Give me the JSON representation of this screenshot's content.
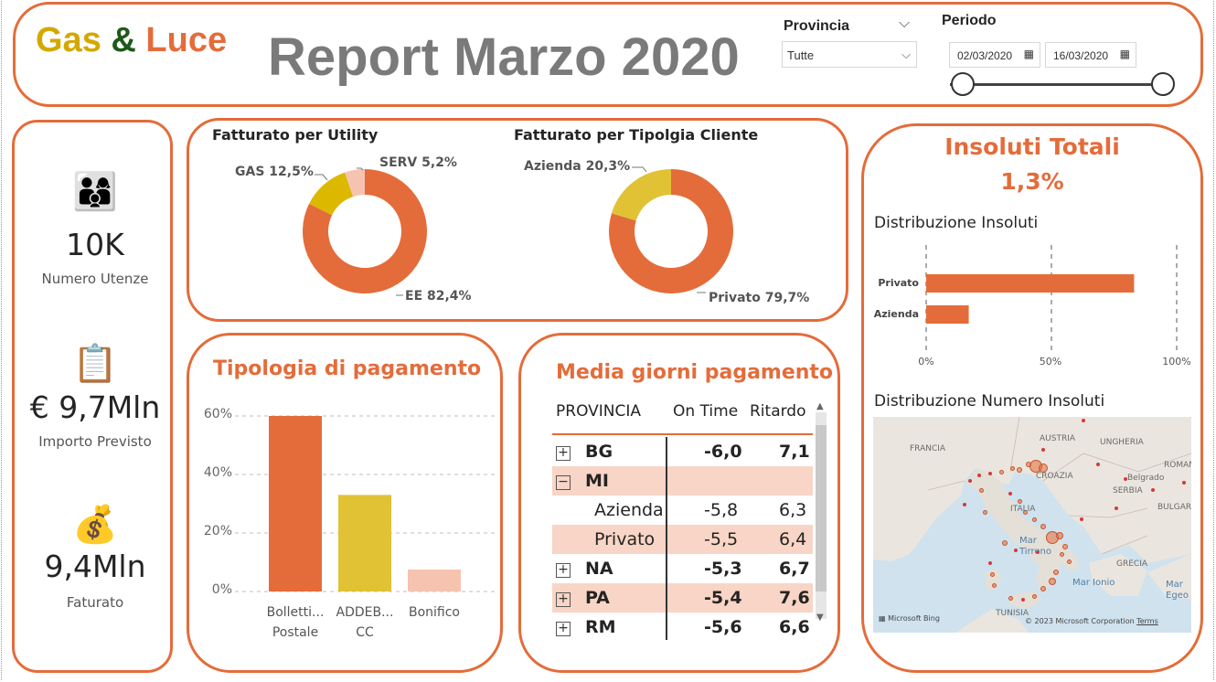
{
  "header": {
    "logo": {
      "gas": "Gas",
      "amp": "&",
      "luce": "Luce"
    },
    "title": "Report Marzo 2020",
    "provincia": {
      "label": "Provincia",
      "value": "Tutte"
    },
    "periodo": {
      "label": "Periodo",
      "start": "02/03/2020",
      "end": "16/03/2020"
    }
  },
  "kpis": [
    {
      "icon": "family-icon",
      "value": "10K",
      "label": "Numero Utenze"
    },
    {
      "icon": "calculator-report-icon",
      "value": "€ 9,7Mln",
      "label": "Importo Previsto"
    },
    {
      "icon": "money-bag-icon",
      "value": "9,4Mln",
      "label": "Faturato"
    }
  ],
  "colors": {
    "accent": "#E46C3A",
    "yellow": "#E0C234",
    "gold": "#D3A800",
    "peach": "#F5C3B0",
    "green": "#1E5A18"
  },
  "donut_utility": {
    "title": "Fatturato per Utility",
    "chart_data": {
      "type": "pie",
      "title": "Fatturato per Utility",
      "slices": [
        {
          "label": "EE",
          "value": 82.4,
          "text": "EE 82,4%",
          "color": "#E46C3A"
        },
        {
          "label": "GAS",
          "value": 12.5,
          "text": "GAS 12,5%",
          "color": "#DDB800"
        },
        {
          "label": "SERV",
          "value": 5.2,
          "text": "SERV 5,2%",
          "color": "#F5C3B0"
        }
      ]
    }
  },
  "donut_cliente": {
    "title": "Fatturato per Tipolgia Cliente",
    "chart_data": {
      "type": "pie",
      "title": "Fatturato per Tipolgia Cliente",
      "slices": [
        {
          "label": "Privato",
          "value": 79.7,
          "text": "Privato 79,7%",
          "color": "#E46C3A"
        },
        {
          "label": "Azienda",
          "value": 20.3,
          "text": "Azienda 20,3%",
          "color": "#E0C234"
        }
      ]
    }
  },
  "payment": {
    "title": "Tipologia di pagamento",
    "chart_data": {
      "type": "bar",
      "categories": [
        [
          "Bolletti...",
          "Postale"
        ],
        [
          "ADDEB...",
          "CC"
        ],
        [
          "Bonifico"
        ]
      ],
      "values": [
        60,
        33,
        7.5
      ],
      "colors": [
        "#E46C3A",
        "#E0C234",
        "#F5C3B0"
      ],
      "yticks": [
        "60%",
        "40%",
        "20%",
        "0%"
      ],
      "ylim": [
        0,
        60
      ]
    }
  },
  "avg_days": {
    "title": "Media giorni pagamento",
    "columns": [
      "PROVINCIA",
      "On Time",
      "Ritardo"
    ],
    "rows": [
      {
        "expander": "+",
        "name": "BG",
        "on_time": "-6,0",
        "ritardo": "7,1",
        "bold": true,
        "shade": false,
        "indent": false
      },
      {
        "expander": "−",
        "name": "MI",
        "on_time": "",
        "ritardo": "",
        "bold": true,
        "shade": true,
        "indent": false
      },
      {
        "expander": "",
        "name": "Azienda",
        "on_time": "-5,8",
        "ritardo": "6,3",
        "bold": false,
        "shade": false,
        "indent": true
      },
      {
        "expander": "",
        "name": "Privato",
        "on_time": "-5,5",
        "ritardo": "6,4",
        "bold": false,
        "shade": true,
        "indent": true
      },
      {
        "expander": "+",
        "name": "NA",
        "on_time": "-5,3",
        "ritardo": "6,7",
        "bold": true,
        "shade": false,
        "indent": false
      },
      {
        "expander": "+",
        "name": "PA",
        "on_time": "-5,4",
        "ritardo": "7,6",
        "bold": true,
        "shade": true,
        "indent": false
      },
      {
        "expander": "+",
        "name": "RM",
        "on_time": "-5,6",
        "ritardo": "6,6",
        "bold": true,
        "shade": false,
        "indent": false
      }
    ]
  },
  "insoluti": {
    "title": "Insoluti Totali",
    "value": "1,3%",
    "dist_title": "Distribuzione Insoluti",
    "chart_data": {
      "type": "bar",
      "orientation": "horizontal",
      "categories": [
        "Privato",
        "Azienda"
      ],
      "values": [
        83,
        17
      ],
      "xticks": [
        "0%",
        "50%",
        "100%"
      ],
      "xlim": [
        0,
        100
      ]
    },
    "map_title": "Distribuzione Numero Insoluti",
    "map": {
      "labels": {
        "austria": "AUSTRIA",
        "ungheria": "UNGHERIA",
        "francia": "FRANCIA",
        "croazia": "CROAZIA",
        "romania": "ROMANI",
        "belgrado": "Belgrado",
        "serbia": "SERBIA",
        "italia": "ITALIA",
        "bulgaria": "BULGAR",
        "mar_tirreno": "Mar\nTirreno",
        "grecia": "GRECIA",
        "mar_ionio": "Mar Ionio",
        "mar_egeo": "Mar\nEgeo",
        "tunisia": "TUNISIA"
      },
      "credit_bing": "Microsoft Bing",
      "credit_corp": "© 2023 Microsoft Corporation",
      "credit_terms": "Terms"
    }
  }
}
